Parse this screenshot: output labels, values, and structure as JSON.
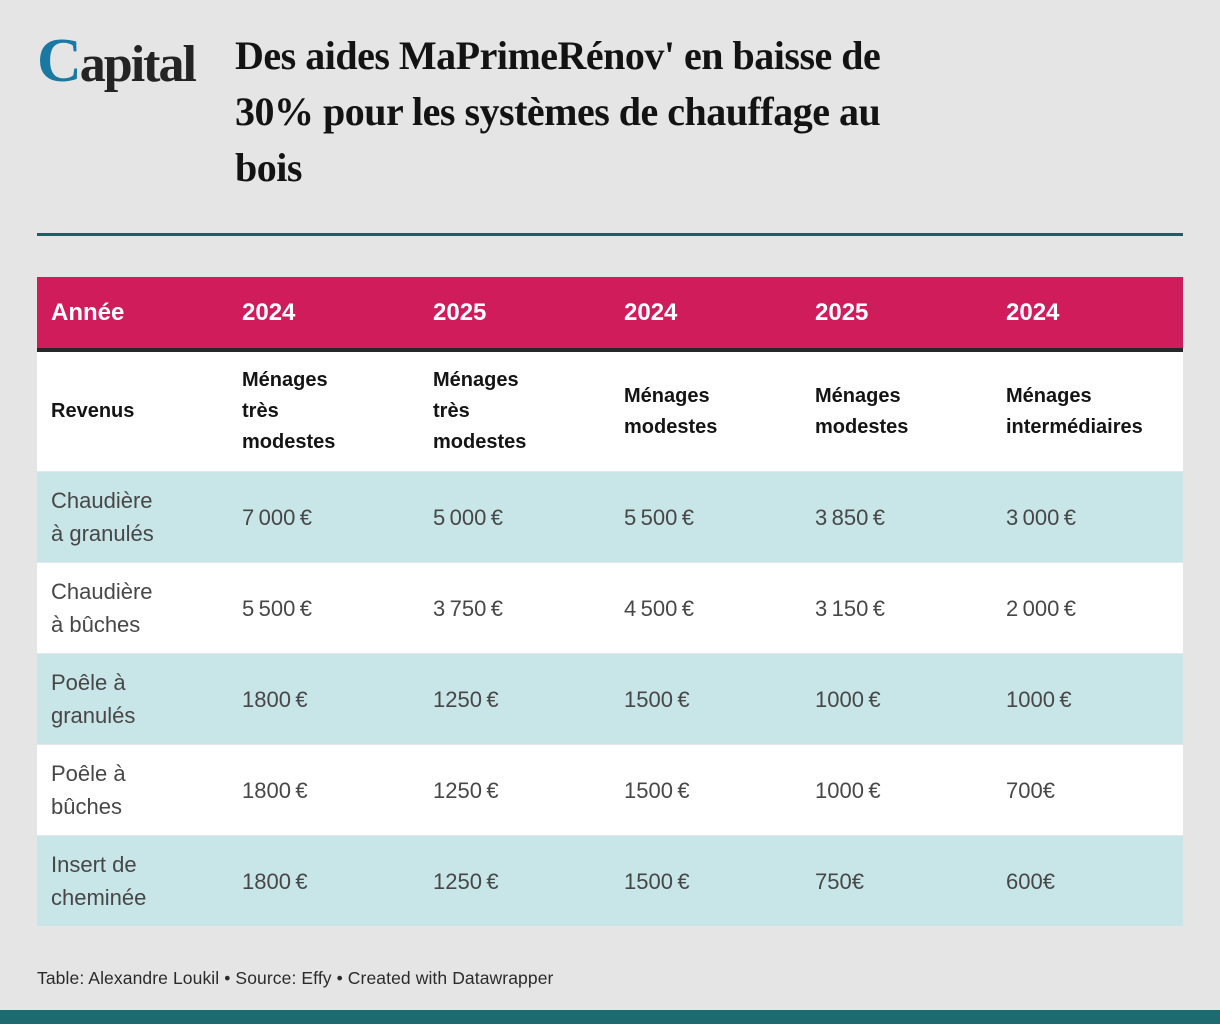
{
  "colors": {
    "page_bg": "#e5e5e6",
    "header_pink": "#d01c5b",
    "divider_teal": "#1a5f63",
    "row_teal": "#c8e5e8",
    "row_white": "#ffffff",
    "logo_blue": "#1a79a1",
    "header_text": "#ffffff",
    "body_text": "#474747"
  },
  "brand": {
    "logo_c": "C",
    "logo_rest": "apital"
  },
  "header": {
    "title": "Des aides MaPrimeRénov' en baisse de 30% pour les systèmes de chauffage au bois",
    "title_lines": [
      "Des aides MaPrimeRénov' en baisse de",
      "30% pour les systèmes de chauffage au",
      "bois"
    ]
  },
  "table": {
    "year_header": {
      "label": "Année",
      "years": [
        "2024",
        "2025",
        "2024",
        "2025",
        "2024"
      ]
    },
    "income_header": {
      "label": "Revenus",
      "groups": [
        "Ménages\ntrès\nmodestes",
        "Ménages\ntrès\nmodestes",
        "Ménages\nmodestes",
        "Ménages\nmodestes",
        "Ménages\nintermédiaires"
      ]
    },
    "rows": [
      {
        "label": "Chaudière à granulés",
        "values": [
          "7 000 €",
          "5 000 €",
          "5 500 €",
          "3 850 €",
          "3 000 €"
        ]
      },
      {
        "label": "Chaudière à bûches",
        "values": [
          "5 500 €",
          "3 750 €",
          "4 500 €",
          "3 150 €",
          "2 000 €"
        ]
      },
      {
        "label": "Poêle à granulés",
        "values": [
          "1800 €",
          "1250 €",
          "1500 €",
          "1000 €",
          "1000 €"
        ]
      },
      {
        "label": "Poêle à bûches",
        "values": [
          "1800 €",
          "1250 €",
          "1500 €",
          "1000 €",
          "700€"
        ]
      },
      {
        "label": "Insert de cheminée",
        "values": [
          "1800 €",
          "1250 €",
          "1500 €",
          "750€",
          "600€"
        ]
      }
    ]
  },
  "chart_data": {
    "type": "table",
    "title": "Des aides MaPrimeRénov' en baisse de 30% pour les systèmes de chauffage au bois",
    "row_header": "Revenus",
    "column_headers_years": [
      "2024",
      "2025",
      "2024",
      "2025",
      "2024"
    ],
    "column_headers_groups": [
      "Ménages très modestes",
      "Ménages très modestes",
      "Ménages modestes",
      "Ménages modestes",
      "Ménages intermédiaires"
    ],
    "categories": [
      "Chaudière à granulés",
      "Chaudière à bûches",
      "Poêle à granulés",
      "Poêle à bûches",
      "Insert de cheminée"
    ],
    "series": [
      {
        "name": "2024 — Ménages très modestes",
        "values": [
          7000,
          5500,
          1800,
          1800,
          1800
        ]
      },
      {
        "name": "2025 — Ménages très modestes",
        "values": [
          5000,
          3750,
          1250,
          1250,
          1250
        ]
      },
      {
        "name": "2024 — Ménages modestes",
        "values": [
          5500,
          4500,
          1500,
          1500,
          1500
        ]
      },
      {
        "name": "2025 — Ménages modestes",
        "values": [
          3850,
          3150,
          1000,
          1000,
          750
        ]
      },
      {
        "name": "2024 — Ménages intermédiaires",
        "values": [
          3000,
          2000,
          1000,
          700,
          600
        ]
      }
    ],
    "unit": "€",
    "legend_position": "none",
    "grid": false
  },
  "footer": {
    "credit": "Table: Alexandre Loukil • Source: Effy • Created with Datawrapper"
  }
}
